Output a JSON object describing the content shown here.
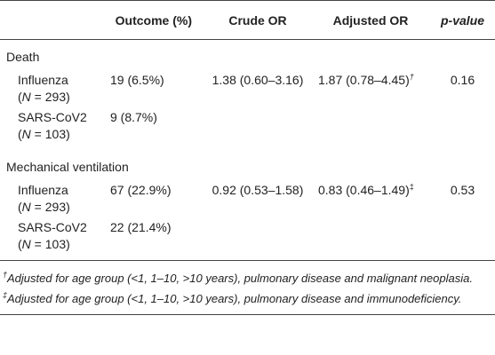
{
  "header": {
    "col0": "",
    "col1": "Outcome (%)",
    "col2": "Crude OR",
    "col3": "Adjusted OR",
    "col4": "p-value"
  },
  "groups": [
    {
      "label": "Death",
      "rows": [
        {
          "name": "Influenza",
          "n_prefix": "(",
          "n_var": "N",
          "n_eq": " = 293)",
          "outcome": "19 (6.5%)",
          "crude": "1.38 (0.60–3.16)",
          "adjusted": "1.87 (0.78–4.45)",
          "adjusted_mark": "†",
          "pvalue": "0.16"
        },
        {
          "name": "SARS-CoV2",
          "n_prefix": "(",
          "n_var": "N",
          "n_eq": " = 103)",
          "outcome": "9 (8.7%)",
          "crude": "",
          "adjusted": "",
          "adjusted_mark": "",
          "pvalue": ""
        }
      ]
    },
    {
      "label": "Mechanical ventilation",
      "rows": [
        {
          "name": "Influenza",
          "n_prefix": "(",
          "n_var": "N",
          "n_eq": " = 293)",
          "outcome": "67 (22.9%)",
          "crude": "0.92 (0.53–1.58)",
          "adjusted": "0.83 (0.46–1.49)",
          "adjusted_mark": "‡",
          "pvalue": "0.53"
        },
        {
          "name": "SARS-CoV2",
          "n_prefix": "(",
          "n_var": "N",
          "n_eq": " = 103)",
          "outcome": "22 (21.4%)",
          "crude": "",
          "adjusted": "",
          "adjusted_mark": "",
          "pvalue": ""
        }
      ]
    }
  ],
  "footnotes": [
    {
      "mark": "†",
      "text": "Adjusted for age group (<1, 1–10, >10 years), pulmonary disease and malignant neoplasia."
    },
    {
      "mark": "‡",
      "text": "Adjusted for age group (<1, 1–10, >10 years), pulmonary disease and immunodeficiency."
    }
  ]
}
